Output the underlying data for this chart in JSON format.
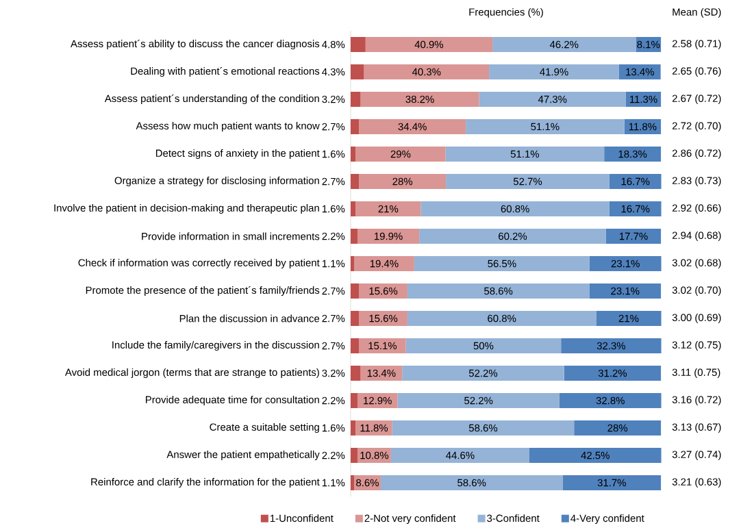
{
  "chart_data": {
    "type": "bar",
    "orientation": "horizontal",
    "stacked": true,
    "title": "Frequencies (%)",
    "categories": [
      "Assess patient´s ability to discuss the cancer diagnosis",
      "Dealing with patient´s emotional reactions",
      "Assess patient´s understanding of the condition",
      "Assess how much patient wants to know",
      "Detect signs of anxiety in the patient",
      "Organize a strategy for disclosing information",
      "Involve the patient in decision-making and therapeutic plan",
      "Provide information in small increments",
      "Check if information was correctly received by patient",
      "Promote the presence of the patient´s family/friends",
      "Plan the discussion in advance",
      "Include the family/caregivers in the discussion",
      "Avoid medical jorgon (terms that are strange to patients)",
      "Provide adequate time for consultation",
      "Create a suitable setting",
      "Answer the patient empathetically",
      "Reinforce and clarify the information for the patient"
    ],
    "series": [
      {
        "name": "1-Unconfident",
        "color": "#c0504d",
        "values": [
          4.8,
          4.3,
          3.2,
          2.7,
          1.6,
          2.7,
          1.6,
          2.2,
          1.1,
          2.7,
          2.7,
          2.7,
          3.2,
          2.2,
          1.6,
          2.2,
          1.1
        ],
        "value_labels": [
          "4.8%",
          "4.3%",
          "3.2%",
          "2.7%",
          "1.6%",
          "2.7%",
          "1.6%",
          "2.2%",
          "1.1%",
          "2.7%",
          "2.7%",
          "2.7%",
          "3.2%",
          "2.2%",
          "1.6%",
          "2.2%",
          "1.1%"
        ]
      },
      {
        "name": "2-Not very confident",
        "color": "#d99694",
        "values": [
          40.9,
          40.3,
          38.2,
          34.4,
          29,
          28,
          21,
          19.9,
          19.4,
          15.6,
          15.6,
          15.1,
          13.4,
          12.9,
          11.8,
          10.8,
          8.6
        ],
        "value_labels": [
          "40.9%",
          "40.3%",
          "38.2%",
          "34.4%",
          "29%",
          "28%",
          "21%",
          "19.9%",
          "19.4%",
          "15.6%",
          "15.6%",
          "15.1%",
          "13.4%",
          "12.9%",
          "11.8%",
          "10.8%",
          "8.6%"
        ]
      },
      {
        "name": "3-Confident",
        "color": "#95b3d7",
        "values": [
          46.2,
          41.9,
          47.3,
          51.1,
          51.1,
          52.7,
          60.8,
          60.2,
          56.5,
          58.6,
          60.8,
          50,
          52.2,
          52.2,
          58.6,
          44.6,
          58.6
        ],
        "value_labels": [
          "46.2%",
          "41.9%",
          "47.3%",
          "51.1%",
          "51.1%",
          "52.7%",
          "60.8%",
          "60.2%",
          "56.5%",
          "58.6%",
          "60.8%",
          "50%",
          "52.2%",
          "52.2%",
          "58.6%",
          "44.6%",
          "58.6%"
        ]
      },
      {
        "name": "4-Very confident",
        "color": "#4f81bd",
        "values": [
          8.1,
          13.4,
          11.3,
          11.8,
          18.3,
          16.7,
          16.7,
          17.7,
          23.1,
          23.1,
          21,
          32.3,
          31.2,
          32.8,
          28,
          42.5,
          31.7
        ],
        "value_labels": [
          "8.1%",
          "13.4%",
          "11.3%",
          "11.8%",
          "18.3%",
          "16.7%",
          "16.7%",
          "17.7%",
          "23.1%",
          "23.1%",
          "21%",
          "32.3%",
          "31.2%",
          "32.8%",
          "28%",
          "42.5%",
          "31.7%"
        ]
      }
    ],
    "xlim": [
      0,
      100.2
    ],
    "tick_labels": "y",
    "legend": "bottom",
    "annotations": [
      "Mean (SD)",
      "2.58 (0.71)",
      "2.65 (0.76)",
      "2.67 (0.72)",
      "2.72 (0.70)",
      "2.86 (0.72)",
      "2.83 (0.73)",
      "2.92 (0.66)",
      "2.94 (0.68)",
      "3.02 (0.68)",
      "3.02 (0.70)",
      "3.00 (0.69)",
      "3.12 (0.75)",
      "3.11 (0.75)",
      "3.16 (0.72)",
      "3.13 (0.67)",
      "3.27 (0.74)",
      "3.21 (0.63)"
    ]
  }
}
